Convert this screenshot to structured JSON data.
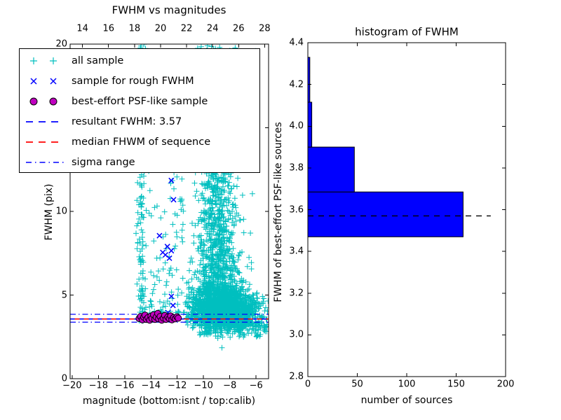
{
  "figure": {
    "background": "#ffffff",
    "axis_color": "#000000"
  },
  "chart_data": [
    {
      "id": "fwhm_vs_magnitudes",
      "type": "scatter",
      "title": "FWHM vs magnitudes",
      "xlabel": "magnitude (bottom:isnt / top:calib)",
      "ylabel": "FWHM (pix)",
      "axes": {
        "x_bottom": {
          "lim": [
            -20.15,
            -5.05
          ],
          "ticks": [
            -20,
            -18,
            -16,
            -14,
            -12,
            -10,
            -8,
            -6
          ]
        },
        "x_top": {
          "lim": [
            13.05,
            28.3
          ],
          "ticks": [
            14,
            16,
            18,
            20,
            22,
            24,
            26,
            28
          ]
        },
        "y": {
          "lim": [
            0,
            20
          ],
          "ticks": [
            0,
            5,
            10,
            15,
            20
          ]
        }
      },
      "series": [
        {
          "name": "all sample",
          "marker": "+",
          "color": "#00bfbf",
          "generated": true,
          "seed": 7,
          "clusters": [
            {
              "n": 165,
              "x": {
                "type": "normal",
                "mu": -14.72,
                "sd": 0.18,
                "min": -15.35,
                "max": -14.15
              },
              "y": {
                "type": "power",
                "min": 3.45,
                "max": 20,
                "exp": 1.35
              }
            },
            {
              "n": 95,
              "x": {
                "type": "uniform",
                "min": -14.2,
                "max": -11.45
              },
              "y": {
                "type": "power",
                "min": 3.9,
                "max": 13.5,
                "exp": 1.9
              }
            },
            {
              "n": 16,
              "x": {
                "type": "uniform",
                "min": -13.5,
                "max": -10.9
              },
              "y": {
                "type": "uniform",
                "min": 13.5,
                "max": 19.9
              }
            },
            {
              "n": 1900,
              "x": {
                "type": "normal",
                "mu": -8.5,
                "sd": 1.25,
                "min": -11.4,
                "max": -5.07
              },
              "y": {
                "type": "normal",
                "mu": 4.05,
                "sd": 0.6,
                "min": 2.4,
                "max": 6.5
              }
            },
            {
              "n": 1000,
              "x": {
                "type": "normal",
                "mu": -8.9,
                "sd": 0.95,
                "min": -11.3,
                "max": -5.07
              },
              "y": {
                "type": "power",
                "min": 5.0,
                "max": 20,
                "exp": 2.0
              }
            },
            {
              "n": 260,
              "x": {
                "type": "normal",
                "mu": -9.15,
                "sd": 0.45,
                "min": -10.3,
                "max": -8.0
              },
              "y": {
                "type": "power",
                "min": 6.0,
                "max": 19.5,
                "exp": 1.4
              }
            },
            {
              "n": 60,
              "x": {
                "type": "uniform",
                "min": -7.5,
                "max": -5.1
              },
              "y": {
                "type": "uniform",
                "min": 2.5,
                "max": 3.4
              }
            }
          ],
          "extra_points": [
            [
              -8.6,
              1.85
            ]
          ]
        },
        {
          "name": "sample for rough FWHM",
          "marker": "x",
          "color": "#0000ff",
          "points": [
            [
              -12.45,
              11.85
            ],
            [
              -12.28,
              10.7
            ],
            [
              -13.35,
              8.55
            ],
            [
              -13.1,
              7.55
            ],
            [
              -12.45,
              7.65
            ],
            [
              -12.9,
              7.4
            ],
            [
              -12.6,
              7.2
            ],
            [
              -12.75,
              7.9
            ],
            [
              -12.45,
              4.92
            ],
            [
              -12.32,
              4.38
            ],
            [
              -13.55,
              3.72
            ],
            [
              -12.7,
              3.95
            ]
          ]
        },
        {
          "name": "best-effort PSF-like sample",
          "marker": "o",
          "color": "#bf00bf",
          "edge": "#000000",
          "points": [
            [
              -14.9,
              3.6
            ],
            [
              -14.78,
              3.72
            ],
            [
              -14.65,
              3.52
            ],
            [
              -14.55,
              3.68
            ],
            [
              -14.45,
              3.8
            ],
            [
              -14.35,
              3.55
            ],
            [
              -14.22,
              3.65
            ],
            [
              -14.1,
              3.5
            ],
            [
              -14.0,
              3.74
            ],
            [
              -13.92,
              3.6
            ],
            [
              -13.8,
              3.82
            ],
            [
              -13.7,
              3.55
            ],
            [
              -13.6,
              3.68
            ],
            [
              -13.48,
              3.9
            ],
            [
              -13.42,
              3.58
            ],
            [
              -13.3,
              3.72
            ],
            [
              -13.18,
              3.5
            ],
            [
              -13.05,
              3.62
            ],
            [
              -12.95,
              3.78
            ],
            [
              -12.85,
              3.55
            ],
            [
              -12.72,
              3.68
            ],
            [
              -12.6,
              3.6
            ],
            [
              -12.5,
              3.75
            ],
            [
              -12.4,
              3.52
            ],
            [
              -12.28,
              3.65
            ],
            [
              -12.15,
              3.58
            ],
            [
              -12.02,
              3.7
            ],
            [
              -11.92,
              3.62
            ]
          ]
        }
      ],
      "lines": [
        {
          "name": "resultant_fwhm",
          "value": 3.57,
          "color": "#0000ff",
          "style": "dashed"
        },
        {
          "name": "median_fwhm",
          "value": 3.57,
          "color": "#ff0000",
          "style": "dashed"
        },
        {
          "name": "sigma_high",
          "value": 3.85,
          "color": "#0000ff",
          "style": "dashdot"
        },
        {
          "name": "sigma_low",
          "value": 3.38,
          "color": "#0000ff",
          "style": "dashdot"
        }
      ],
      "legend": {
        "entries": [
          {
            "label": "all sample",
            "marker": "plus-pair",
            "color": "#00bfbf"
          },
          {
            "label": "sample for rough FWHM",
            "marker": "x-pair",
            "color": "#0000ff"
          },
          {
            "label": "best-effort PSF-like sample",
            "marker": "circle-pair",
            "color": "#bf00bf",
            "edge": "#000000"
          },
          {
            "label": "resultant FWHM: 3.57",
            "marker": "dashed-line",
            "color": "#0000ff"
          },
          {
            "label": "median FHWM of sequence",
            "marker": "dashed-line",
            "color": "#ff0000"
          },
          {
            "label": "sigma range",
            "marker": "dashdot-line",
            "color": "#0000ff"
          }
        ]
      }
    },
    {
      "id": "histogram_of_fwhm",
      "type": "histogram-horizontal",
      "title": "histogram of FWHM",
      "xlabel": "number of sources",
      "ylabel": "FWHM of best-effort PSF-like sources",
      "xlim": [
        0,
        200
      ],
      "ylim": [
        2.8,
        4.4
      ],
      "xticks": [
        0,
        50,
        100,
        150,
        200
      ],
      "yticks": [
        2.8,
        3.0,
        3.2,
        3.4,
        3.6,
        3.8,
        4.0,
        4.2,
        4.4
      ],
      "bar_color": "#0000ff",
      "bar_edge": "#000000",
      "bins": [
        {
          "range": [
            3.47,
            3.685
          ],
          "count": 157
        },
        {
          "range": [
            3.685,
            3.9
          ],
          "count": 47
        },
        {
          "range": [
            3.9,
            4.115
          ],
          "count": 4
        },
        {
          "range": [
            4.115,
            4.33
          ],
          "count": 2
        }
      ],
      "median_line": {
        "value": 3.57,
        "x_extent": [
          0,
          185
        ],
        "color": "#000000",
        "style": "dashed"
      }
    }
  ]
}
